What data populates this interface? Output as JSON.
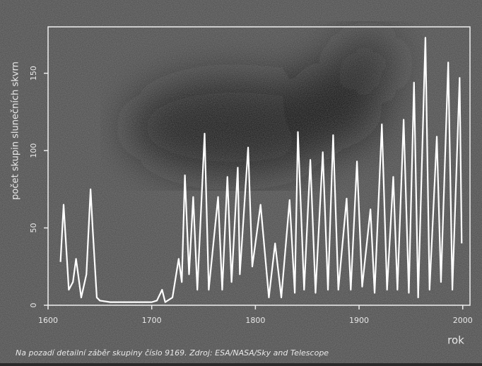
{
  "chart_data": {
    "type": "line",
    "ylabel": "počet skupin slunečních skvrn",
    "xlabel": "rok",
    "caption": "Na pozadí detailní záběr skupiny číslo 9169. Zdroj: ESA/NASA/Sky and Telescope",
    "xlim": [
      1600,
      2007
    ],
    "ylim": [
      0,
      180
    ],
    "xticks": [
      1600,
      1700,
      1800,
      1900,
      2000
    ],
    "yticks": [
      0,
      50,
      100,
      150
    ],
    "series": [
      {
        "color": "#ffffff",
        "x": [
          1612,
          1615,
          1620,
          1624,
          1627,
          1632,
          1637,
          1641,
          1643,
          1647,
          1650,
          1660,
          1680,
          1700,
          1705,
          1710,
          1713,
          1720,
          1726,
          1729,
          1732,
          1736,
          1740,
          1744,
          1751,
          1755,
          1764,
          1768,
          1773,
          1777,
          1783,
          1785,
          1793,
          1797,
          1805,
          1813,
          1819,
          1825,
          1833,
          1838,
          1841,
          1847,
          1853,
          1858,
          1865,
          1870,
          1875,
          1880,
          1888,
          1892,
          1898,
          1903,
          1911,
          1915,
          1922,
          1927,
          1933,
          1937,
          1943,
          1948,
          1953,
          1957,
          1964,
          1968,
          1975,
          1979,
          1986,
          1990,
          1997,
          1999
        ],
        "values": [
          28,
          65,
          10,
          15,
          30,
          5,
          20,
          75,
          50,
          5,
          3,
          2,
          2,
          2,
          3,
          10,
          2,
          5,
          30,
          15,
          84,
          20,
          70,
          10,
          111,
          10,
          70,
          10,
          83,
          15,
          89,
          20,
          102,
          25,
          65,
          5,
          40,
          5,
          68,
          8,
          112,
          10,
          94,
          8,
          99,
          10,
          110,
          10,
          69,
          10,
          93,
          12,
          62,
          8,
          117,
          10,
          83,
          10,
          120,
          8,
          144,
          5,
          173,
          10,
          109,
          15,
          157,
          10,
          147,
          40
        ]
      }
    ]
  }
}
